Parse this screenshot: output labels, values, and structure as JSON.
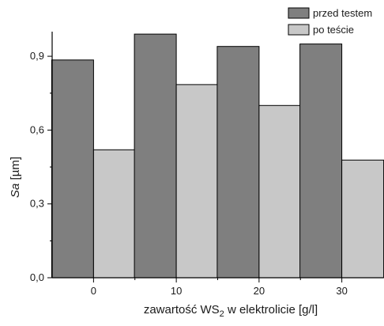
{
  "chart_data": {
    "type": "bar",
    "categories": [
      "0",
      "10",
      "20",
      "30"
    ],
    "series": [
      {
        "name": "przed testem",
        "values": [
          0.885,
          0.99,
          0.94,
          0.95
        ],
        "color": "#7f7f7f"
      },
      {
        "name": "po teście",
        "values": [
          0.52,
          0.785,
          0.7,
          0.478
        ],
        "color": "#c8c8c8"
      }
    ],
    "y_ticks": [
      "0,0",
      "0,3",
      "0,6",
      "0,9"
    ],
    "y_tick_values": [
      0,
      0.3,
      0.6,
      0.9
    ],
    "ylim": [
      0,
      1.0
    ],
    "ylabel": {
      "italic": "Sa",
      "rest": " [µm]"
    },
    "xlabel": {
      "before": "zawartość WS",
      "sub": "2",
      "after": " w elektrolicie [g/l]"
    },
    "legend_position": "top-right",
    "grid": false,
    "axis_color": "#000000"
  }
}
